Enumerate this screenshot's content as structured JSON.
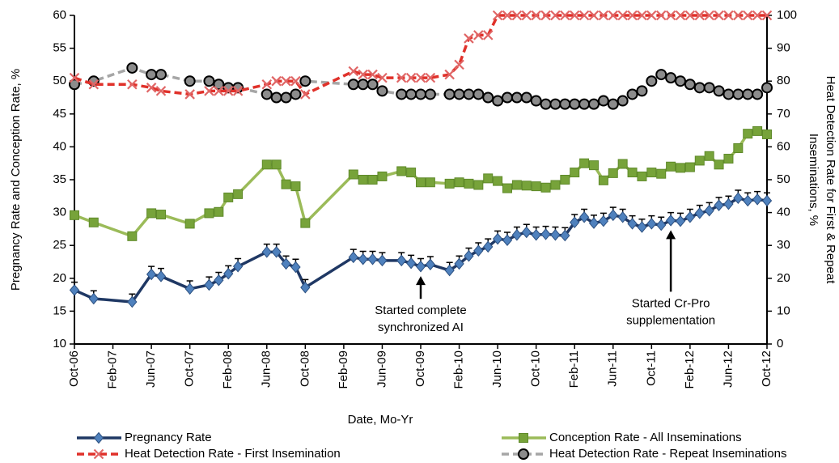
{
  "chart_data": {
    "type": "line",
    "x_label": "Date, Mo-Yr",
    "y_label": "Pregnancy Rate and Conception Rate, %",
    "y2_label": [
      "Heat Detection Rate for First & Repeat",
      "Inseminations, %"
    ],
    "xlim": [
      0,
      72
    ],
    "xticks": [
      {
        "value": 0,
        "label": "Oct-06"
      },
      {
        "value": 4,
        "label": "Feb-07"
      },
      {
        "value": 8,
        "label": "Jun-07"
      },
      {
        "value": 12,
        "label": "Oct-07"
      },
      {
        "value": 16,
        "label": "Feb-08"
      },
      {
        "value": 20,
        "label": "Jun-08"
      },
      {
        "value": 24,
        "label": "Oct-08"
      },
      {
        "value": 28,
        "label": "Feb-09"
      },
      {
        "value": 32,
        "label": "Jun-09"
      },
      {
        "value": 36,
        "label": "Oct-09"
      },
      {
        "value": 40,
        "label": "Feb-10"
      },
      {
        "value": 44,
        "label": "Jun-10"
      },
      {
        "value": 48,
        "label": "Oct-10"
      },
      {
        "value": 52,
        "label": "Feb-11"
      },
      {
        "value": 56,
        "label": "Jun-11"
      },
      {
        "value": 60,
        "label": "Oct-11"
      },
      {
        "value": 64,
        "label": "Feb-12"
      },
      {
        "value": 68,
        "label": "Jun-12"
      },
      {
        "value": 72,
        "label": "Oct-12"
      }
    ],
    "ylim": [
      10,
      60
    ],
    "yticks": [
      10,
      15,
      20,
      25,
      30,
      35,
      40,
      45,
      50,
      55,
      60
    ],
    "y2lim": [
      0,
      100
    ],
    "y2ticks": [
      0,
      10,
      20,
      30,
      40,
      50,
      60,
      70,
      80,
      90,
      100
    ],
    "x": [
      0,
      2,
      6,
      8,
      9,
      12,
      14,
      15,
      16,
      17,
      20,
      21,
      22,
      23,
      24,
      29,
      30,
      31,
      32,
      34,
      35,
      36,
      37,
      39,
      40,
      41,
      42,
      43,
      44,
      45,
      46,
      47,
      48,
      49,
      50,
      51,
      52,
      53,
      54,
      55,
      56,
      57,
      58,
      59,
      60,
      61,
      62,
      63,
      64,
      65,
      66,
      67,
      68,
      69,
      70,
      71,
      72
    ],
    "series": [
      {
        "name": "Pregnancy Rate",
        "color": "#1f3864",
        "marker": "diamond",
        "marker_color": "#4f81bd",
        "dash": false,
        "axis": "y",
        "values": [
          18.2,
          16.9,
          16.4,
          20.6,
          20.3,
          18.4,
          19.0,
          19.7,
          20.7,
          21.8,
          24.0,
          24.0,
          22.2,
          21.7,
          18.6,
          23.2,
          22.9,
          22.9,
          22.7,
          22.7,
          22.3,
          21.8,
          22.1,
          21.2,
          22.2,
          23.4,
          24.2,
          24.8,
          26.0,
          25.8,
          26.6,
          27.0,
          26.6,
          26.7,
          26.6,
          26.5,
          28.5,
          29.3,
          28.4,
          28.7,
          29.6,
          29.3,
          28.3,
          27.8,
          28.3,
          28.1,
          28.8,
          28.7,
          29.3,
          29.9,
          30.3,
          31.1,
          31.3,
          32.2,
          31.8,
          32.0,
          31.8
        ],
        "errors": [
          1.2,
          1.2,
          1.2,
          1.2,
          1.2,
          1.2,
          1.2,
          1.2,
          1.2,
          1.2,
          1.2,
          1.2,
          1.2,
          1.2,
          1.2,
          1.2,
          1.2,
          1.2,
          1.2,
          1.2,
          1.2,
          1.2,
          1.2,
          1.2,
          1.2,
          1.2,
          1.2,
          1.2,
          1.2,
          1.2,
          1.2,
          1.2,
          1.2,
          1.2,
          1.2,
          1.2,
          1.2,
          1.2,
          1.2,
          1.2,
          1.2,
          1.2,
          1.2,
          1.2,
          1.2,
          1.2,
          1.2,
          1.2,
          1.2,
          1.2,
          1.2,
          1.2,
          1.2,
          1.2,
          1.2,
          1.2,
          1.2
        ]
      },
      {
        "name": "Conception Rate - All Inseminations",
        "color": "#9bbb59",
        "marker": "square",
        "marker_color": "#77a33a",
        "dash": false,
        "axis": "y",
        "values": [
          29.6,
          28.5,
          26.4,
          29.9,
          29.7,
          28.3,
          29.9,
          30.1,
          32.3,
          32.8,
          37.3,
          37.3,
          34.3,
          34.0,
          28.4,
          35.8,
          35.0,
          35.0,
          35.5,
          36.3,
          36.1,
          34.6,
          34.6,
          34.4,
          34.6,
          34.4,
          34.2,
          35.2,
          34.8,
          33.7,
          34.2,
          34.1,
          34.0,
          33.8,
          34.2,
          35.0,
          36.1,
          37.5,
          37.2,
          34.9,
          36.0,
          37.4,
          36.1,
          35.5,
          36.1,
          35.9,
          37.0,
          36.8,
          36.9,
          37.9,
          38.6,
          37.3,
          38.2,
          39.8,
          42.0,
          42.4,
          41.9
        ]
      },
      {
        "name": "Heat Detection Rate - First Insemination",
        "color": "#e0312a",
        "marker": "cross",
        "marker_color": "#e06666",
        "dash": true,
        "axis": "y2",
        "values": [
          81,
          79,
          79,
          78,
          77,
          76,
          77,
          77,
          77,
          77,
          79,
          80,
          80,
          80,
          76,
          83,
          82,
          82,
          81,
          81,
          81,
          81,
          81,
          82,
          85,
          93,
          94,
          94,
          100,
          100,
          100,
          100,
          100,
          100,
          100,
          100,
          100,
          100,
          100,
          100,
          100,
          100,
          100,
          100,
          100,
          100,
          100,
          100,
          100,
          100,
          100,
          100,
          100,
          100,
          100,
          100,
          100
        ]
      },
      {
        "name": "Heat Detection Rate - Repeat Inseminations",
        "color": "#a6a6a6",
        "marker": "circle",
        "marker_color": "#8c8c8c",
        "dash": true,
        "axis": "y2",
        "values": [
          79,
          80,
          84,
          82,
          82,
          80,
          80,
          79,
          78,
          78,
          76,
          75,
          75,
          76,
          80,
          79,
          79,
          79,
          77,
          76,
          76,
          76,
          76,
          76,
          76,
          76,
          76,
          75,
          74,
          75,
          75,
          75,
          74,
          73,
          73,
          73,
          73,
          73,
          73,
          74,
          73,
          74,
          76,
          77,
          80,
          82,
          81,
          80,
          79,
          78,
          78,
          77,
          76,
          76,
          76,
          76,
          78
        ]
      }
    ],
    "annotations": [
      {
        "lines": [
          "Started complete",
          "synchronized AI"
        ],
        "x": 36
      },
      {
        "lines": [
          "Started Cr-Pro",
          "supplementation"
        ],
        "x": 62
      }
    ]
  }
}
